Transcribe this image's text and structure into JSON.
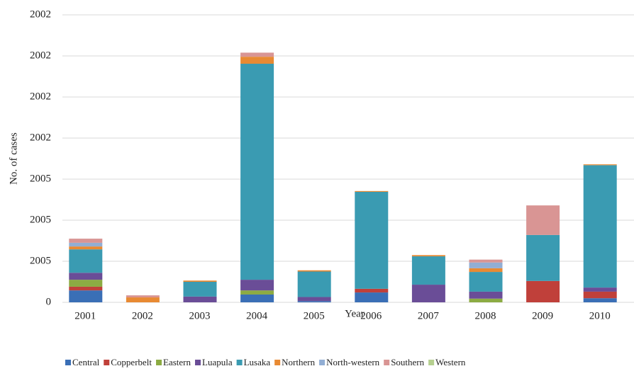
{
  "chart_data": {
    "type": "stacked_bar",
    "x_label": "Year",
    "y_label": "No. of cases",
    "categories": [
      "2001",
      "2002",
      "2003",
      "2004",
      "2005",
      "2006",
      "2007",
      "2008",
      "2009",
      "2010"
    ],
    "series": [
      {
        "name": "Central",
        "color": "#3a6fb6",
        "values": [
          0.29,
          0,
          0,
          0.19,
          0.03,
          0.24,
          0,
          0,
          0,
          0.1
        ]
      },
      {
        "name": "Copperbelt",
        "color": "#c0403a",
        "values": [
          0.09,
          0,
          0,
          0,
          0,
          0.09,
          0,
          0,
          0.52,
          0.16
        ]
      },
      {
        "name": "Eastern",
        "color": "#8cab43",
        "values": [
          0.17,
          0,
          0,
          0.1,
          0,
          0,
          0,
          0.09,
          0,
          0
        ]
      },
      {
        "name": "Luapula",
        "color": "#6a4d97",
        "values": [
          0.17,
          0,
          0.14,
          0.26,
          0.1,
          0,
          0.43,
          0.17,
          0,
          0.1
        ]
      },
      {
        "name": "Lusaka",
        "color": "#3a9bb2",
        "values": [
          0.57,
          0,
          0.36,
          5.26,
          0.62,
          2.36,
          0.69,
          0.48,
          1.12,
          2.98
        ]
      },
      {
        "name": "Northern",
        "color": "#e88a33",
        "values": [
          0.07,
          0.12,
          0.03,
          0.17,
          0.03,
          0.02,
          0.03,
          0.09,
          0,
          0.02
        ]
      },
      {
        "name": "North-western",
        "color": "#92aed4",
        "values": [
          0.09,
          0,
          0,
          0,
          0,
          0,
          0,
          0.14,
          0,
          0
        ]
      },
      {
        "name": "Southern",
        "color": "#d99594",
        "values": [
          0.1,
          0.05,
          0,
          0.1,
          0,
          0,
          0,
          0.07,
          0.72,
          0
        ]
      },
      {
        "name": "Western",
        "color": "#b5cf8f",
        "values": [
          0,
          0,
          0,
          0,
          0,
          0,
          0,
          0,
          0,
          0
        ]
      }
    ],
    "ylim": [
      0,
      7
    ],
    "yticks": [
      0,
      {
        "value": 1,
        "label": "2005"
      },
      {
        "value": 2,
        "label": "2005"
      },
      {
        "value": 3,
        "label": "2005"
      },
      {
        "value": 4,
        "label": "2002"
      },
      {
        "value": 5,
        "label": "2002"
      },
      {
        "value": 6,
        "label": "2002"
      },
      {
        "value": 7,
        "label": "2002"
      }
    ],
    "grid": true
  }
}
